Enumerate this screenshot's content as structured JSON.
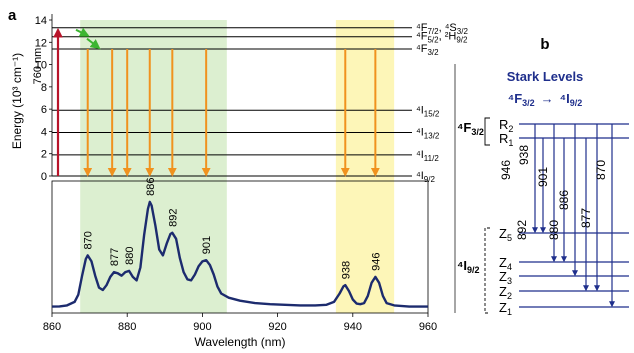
{
  "panel_a": {
    "label": "a",
    "y_axis_label": "Energy (10³ cm⁻¹)",
    "y_ticks": [
      "0",
      "2",
      "4",
      "6",
      "8",
      "10",
      "12",
      "14"
    ],
    "pump_label": "760 nm",
    "levels": [
      {
        "id": "F72",
        "energy": 13.3,
        "label_main": "⁴F",
        "label_sub": "7/2",
        "label_tail": ", ⁴S",
        "label_sub2": "3/2"
      },
      {
        "id": "F52",
        "energy": 12.5,
        "label_main": "⁴F",
        "label_sub": "5/2",
        "label_tail": ", ²H",
        "label_sub2": "9/2"
      },
      {
        "id": "F32",
        "energy": 11.4,
        "label_main": "⁴F",
        "label_sub": "3/2",
        "label_tail": "",
        "label_sub2": ""
      },
      {
        "id": "I152",
        "energy": 5.9,
        "label_main": "⁴I",
        "label_sub": "15/2",
        "label_tail": "",
        "label_sub2": ""
      },
      {
        "id": "I132",
        "energy": 3.9,
        "label_main": "⁴I",
        "label_sub": "13/2",
        "label_tail": "",
        "label_sub2": ""
      },
      {
        "id": "I112",
        "energy": 1.9,
        "label_main": "⁴I",
        "label_sub": "11/2",
        "label_tail": "",
        "label_sub2": ""
      },
      {
        "id": "I92",
        "energy": 0,
        "label_main": "⁴I",
        "label_sub": "9/2",
        "label_tail": "",
        "label_sub2": ""
      }
    ],
    "x_axis_label": "Wavelength (nm)",
    "x_ticks": [
      "860",
      "880",
      "900",
      "920",
      "940",
      "960"
    ],
    "peak_labels": [
      {
        "text": "870",
        "nm": 869.5
      },
      {
        "text": "877",
        "nm": 876.5
      },
      {
        "text": "880",
        "nm": 880.5
      },
      {
        "text": "886",
        "nm": 886
      },
      {
        "text": "892",
        "nm": 892
      },
      {
        "text": "901",
        "nm": 901
      },
      {
        "text": "938",
        "nm": 938
      },
      {
        "text": "946",
        "nm": 946
      }
    ],
    "green_band_nm": [
      867.5,
      906.5
    ],
    "yellow_band_nm": [
      935.5,
      951
    ],
    "emission_arrows_nm": [
      869.5,
      876,
      880,
      886,
      892,
      901,
      938,
      946
    ],
    "spectrum_color": "#1c2b6e",
    "arrow_color": "#f0921e",
    "pump_color": "#b8142a",
    "relax_color": "#3cb531",
    "green_color": "#dcefd0",
    "yellow_color": "#fdf6b8"
  },
  "chart_data": {
    "type": "line",
    "xlabel": "Wavelength (nm)",
    "ylabel": "",
    "xlim": [
      860,
      960
    ],
    "series": [
      {
        "values": [
          [
            860,
            0.02
          ],
          [
            862,
            0.022
          ],
          [
            864,
            0.03
          ],
          [
            866,
            0.06
          ],
          [
            867,
            0.12
          ],
          [
            868,
            0.28
          ],
          [
            869,
            0.42
          ],
          [
            869.5,
            0.45
          ],
          [
            870.5,
            0.4
          ],
          [
            871.5,
            0.28
          ],
          [
            872.5,
            0.18
          ],
          [
            873.5,
            0.16
          ],
          [
            874.5,
            0.2
          ],
          [
            875.5,
            0.27
          ],
          [
            876.5,
            0.31
          ],
          [
            877.5,
            0.3
          ],
          [
            878.5,
            0.28
          ],
          [
            879.5,
            0.31
          ],
          [
            880.5,
            0.32
          ],
          [
            881.5,
            0.27
          ],
          [
            882.5,
            0.24
          ],
          [
            883.5,
            0.35
          ],
          [
            884.5,
            0.62
          ],
          [
            885.5,
            0.84
          ],
          [
            886,
            0.9
          ],
          [
            886.5,
            0.87
          ],
          [
            887.5,
            0.7
          ],
          [
            888.5,
            0.5
          ],
          [
            889.5,
            0.45
          ],
          [
            890.5,
            0.55
          ],
          [
            891.5,
            0.63
          ],
          [
            892,
            0.64
          ],
          [
            893,
            0.59
          ],
          [
            894,
            0.43
          ],
          [
            895,
            0.31
          ],
          [
            896,
            0.25
          ],
          [
            897,
            0.24
          ],
          [
            898,
            0.29
          ],
          [
            899,
            0.36
          ],
          [
            900,
            0.4
          ],
          [
            901,
            0.41
          ],
          [
            902,
            0.37
          ],
          [
            903,
            0.29
          ],
          [
            904,
            0.19
          ],
          [
            905,
            0.13
          ],
          [
            907,
            0.095
          ],
          [
            910,
            0.07
          ],
          [
            914,
            0.05
          ],
          [
            918,
            0.04
          ],
          [
            922,
            0.035
          ],
          [
            926,
            0.03
          ],
          [
            930,
            0.03
          ],
          [
            933,
            0.035
          ],
          [
            935,
            0.06
          ],
          [
            936.5,
            0.13
          ],
          [
            937.5,
            0.19
          ],
          [
            938,
            0.2
          ],
          [
            939,
            0.15
          ],
          [
            940,
            0.08
          ],
          [
            941,
            0.045
          ],
          [
            942,
            0.04
          ],
          [
            943,
            0.05
          ],
          [
            944,
            0.11
          ],
          [
            945,
            0.22
          ],
          [
            946,
            0.27
          ],
          [
            947,
            0.22
          ],
          [
            948,
            0.11
          ],
          [
            949,
            0.05
          ],
          [
            951,
            0.03
          ],
          [
            955,
            0.02
          ],
          [
            960,
            0.02
          ]
        ]
      }
    ],
    "grid": false
  },
  "panel_b": {
    "label": "b",
    "title": "Stark Levels",
    "transition_main_a": "⁴F",
    "transition_sub_a": "3/2",
    "transition_arrow": "→",
    "transition_main_b": "⁴I",
    "transition_sub_b": "9/2",
    "upper_manifold_main": "⁴F",
    "upper_manifold_sub": "3/2",
    "lower_manifold_main": "⁴I",
    "lower_manifold_sub": "9/2",
    "upper_levels": [
      {
        "name": "R",
        "sub": "2"
      },
      {
        "name": "R",
        "sub": "1"
      }
    ],
    "lower_levels": [
      {
        "name": "Z",
        "sub": "5"
      },
      {
        "name": "Z",
        "sub": "4"
      },
      {
        "name": "Z",
        "sub": "3"
      },
      {
        "name": "Z",
        "sub": "2"
      },
      {
        "name": "Z",
        "sub": "1"
      }
    ],
    "transitions": [
      {
        "label": "938",
        "from": "R2"
      },
      {
        "label": "946",
        "from": "R1"
      },
      {
        "label": "901",
        "from": "R2"
      },
      {
        "label": "892",
        "from": "R1"
      },
      {
        "label": "886",
        "from": "R2"
      },
      {
        "label": "880",
        "from": "R1"
      },
      {
        "label": "877",
        "from": "R2"
      },
      {
        "label": "870",
        "from": "R2"
      }
    ],
    "color": "#1f2f8c"
  }
}
